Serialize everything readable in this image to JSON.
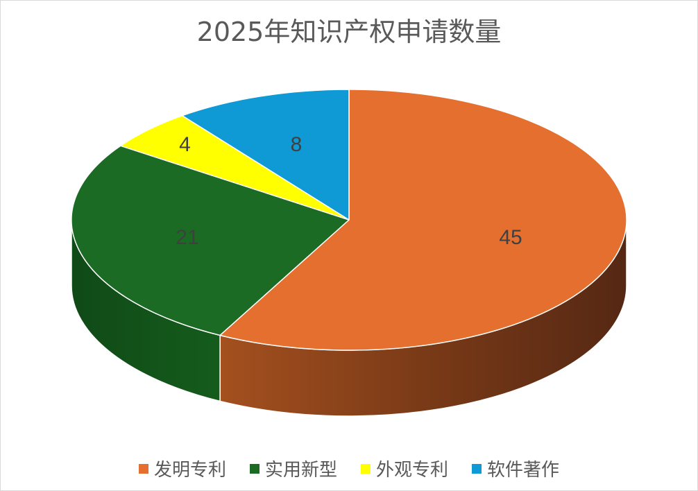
{
  "chart_data": {
    "type": "pie",
    "title": "2025年知识产权申请数量",
    "categories": [
      "发明专利",
      "实用新型",
      "外观专利",
      "软件著作"
    ],
    "values": [
      45,
      21,
      4,
      8
    ],
    "colors": [
      "#e46f2e",
      "#1b6b24",
      "#ffff00",
      "#0f9ad6"
    ],
    "data_labels": [
      "45",
      "21",
      "4",
      "8"
    ],
    "legend_position": "bottom",
    "style": "3d"
  }
}
